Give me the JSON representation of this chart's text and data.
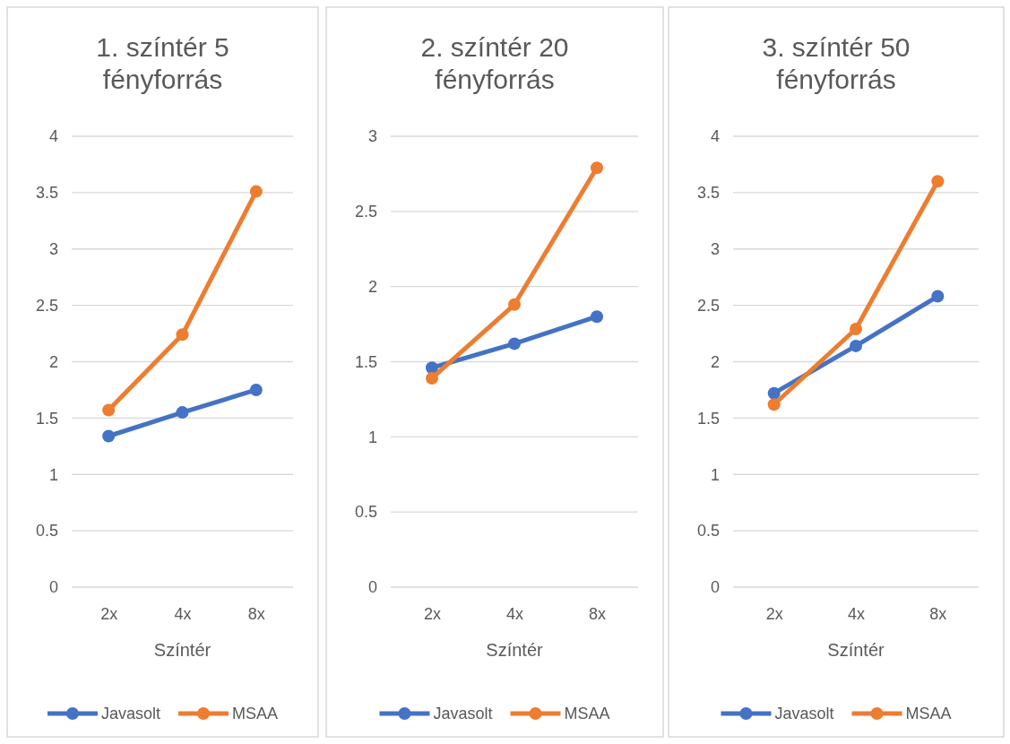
{
  "chart_data": [
    {
      "type": "line",
      "title": "1. színtér 5 fényforrás",
      "xlabel": "Színtér",
      "categories": [
        "2x",
        "4x",
        "8x"
      ],
      "ylim": [
        0,
        4
      ],
      "yticks": [
        0,
        0.5,
        1,
        1.5,
        2,
        2.5,
        3,
        3.5,
        4
      ],
      "grid": "y",
      "legend": "bottom",
      "marker": "circle",
      "series": [
        {
          "name": "Javasolt",
          "color": "#4472c4",
          "values": [
            1.34,
            1.55,
            1.75
          ]
        },
        {
          "name": "MSAA",
          "color": "#ed7d31",
          "values": [
            1.57,
            2.24,
            3.51
          ]
        }
      ]
    },
    {
      "type": "line",
      "title": "2. színtér 20 fényforrás",
      "xlabel": "Színtér",
      "categories": [
        "2x",
        "4x",
        "8x"
      ],
      "ylim": [
        0,
        3
      ],
      "yticks": [
        0,
        0.5,
        1,
        1.5,
        2,
        2.5,
        3
      ],
      "grid": "y",
      "legend": "bottom",
      "marker": "circle",
      "series": [
        {
          "name": "Javasolt",
          "color": "#4472c4",
          "values": [
            1.46,
            1.62,
            1.8
          ]
        },
        {
          "name": "MSAA",
          "color": "#ed7d31",
          "values": [
            1.39,
            1.88,
            2.79
          ]
        }
      ]
    },
    {
      "type": "line",
      "title": "3. színtér 50 fényforrás",
      "xlabel": "Színtér",
      "categories": [
        "2x",
        "4x",
        "8x"
      ],
      "ylim": [
        0,
        4
      ],
      "yticks": [
        0,
        0.5,
        1,
        1.5,
        2,
        2.5,
        3,
        3.5,
        4
      ],
      "grid": "y",
      "legend": "bottom",
      "marker": "circle",
      "series": [
        {
          "name": "Javasolt",
          "color": "#4472c4",
          "values": [
            1.72,
            2.14,
            2.58
          ]
        },
        {
          "name": "MSAA",
          "color": "#ed7d31",
          "values": [
            1.62,
            2.29,
            3.6
          ]
        }
      ]
    }
  ]
}
